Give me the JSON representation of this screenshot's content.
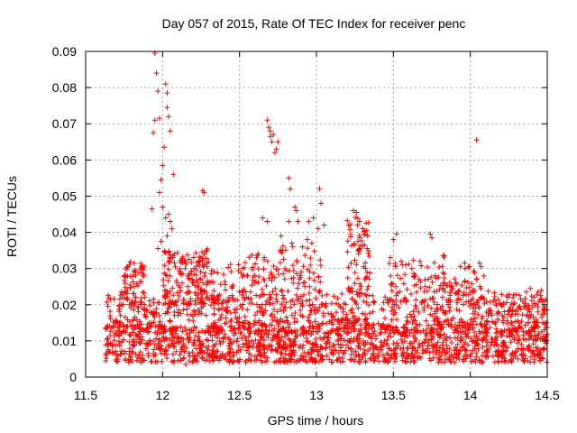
{
  "chart_data": {
    "type": "scatter",
    "title": "Day 057 of 2015, Rate Of TEC Index for receiver penc",
    "xlabel": "GPS time / hours",
    "ylabel": "ROTI / TECUs",
    "xlim": [
      11.5,
      14.5
    ],
    "ylim": [
      0,
      0.09
    ],
    "xticks": [
      11.5,
      12,
      12.5,
      13,
      13.5,
      14,
      14.5
    ],
    "xtick_labels": [
      "11.5",
      "12",
      "12.5",
      "13",
      "13.5",
      "14",
      "14.5"
    ],
    "yticks": [
      0,
      0.01,
      0.02,
      0.03,
      0.04,
      0.05,
      0.06,
      0.07,
      0.08,
      0.09
    ],
    "ytick_labels": [
      "0",
      "0.01",
      "0.02",
      "0.03",
      "0.04",
      "0.05",
      "0.06",
      "0.07",
      "0.08",
      "0.09"
    ],
    "grid": true,
    "marker": "+",
    "color": "#ff0000",
    "x_data_range": [
      11.63,
      14.5
    ],
    "bands": [
      {
        "x0": 11.63,
        "x1": 14.5,
        "y0": 0.004,
        "y1": 0.016,
        "n": 1400
      },
      {
        "x0": 11.63,
        "x1": 14.5,
        "y0": 0.012,
        "y1": 0.024,
        "n": 700
      },
      {
        "x0": 11.75,
        "x1": 11.9,
        "y0": 0.02,
        "y1": 0.032,
        "n": 60
      },
      {
        "x0": 12.0,
        "x1": 12.3,
        "y0": 0.02,
        "y1": 0.038,
        "n": 160
      },
      {
        "x0": 12.3,
        "x1": 12.55,
        "y0": 0.018,
        "y1": 0.032,
        "n": 60
      },
      {
        "x0": 12.55,
        "x1": 12.75,
        "y0": 0.02,
        "y1": 0.035,
        "n": 50
      },
      {
        "x0": 12.75,
        "x1": 13.05,
        "y0": 0.02,
        "y1": 0.04,
        "n": 70
      },
      {
        "x0": 13.2,
        "x1": 13.35,
        "y0": 0.02,
        "y1": 0.045,
        "n": 70
      },
      {
        "x0": 13.45,
        "x1": 13.85,
        "y0": 0.02,
        "y1": 0.035,
        "n": 80
      },
      {
        "x0": 13.85,
        "x1": 14.1,
        "y0": 0.02,
        "y1": 0.032,
        "n": 50
      },
      {
        "x0": 14.1,
        "x1": 14.5,
        "y0": 0.015,
        "y1": 0.026,
        "n": 60
      }
    ],
    "points": [
      [
        11.95,
        0.0895
      ],
      [
        11.96,
        0.084
      ],
      [
        11.97,
        0.079
      ],
      [
        12.02,
        0.081
      ],
      [
        12.03,
        0.0785
      ],
      [
        12.03,
        0.0745
      ],
      [
        12.04,
        0.072
      ],
      [
        12.05,
        0.068
      ],
      [
        11.94,
        0.0675
      ],
      [
        11.95,
        0.071
      ],
      [
        11.98,
        0.0715
      ],
      [
        12.01,
        0.0635
      ],
      [
        12.0,
        0.0585
      ],
      [
        12.07,
        0.056
      ],
      [
        11.99,
        0.0545
      ],
      [
        11.98,
        0.051
      ],
      [
        12.0,
        0.047
      ],
      [
        11.93,
        0.0465
      ],
      [
        12.02,
        0.044
      ],
      [
        12.04,
        0.045
      ],
      [
        12.05,
        0.043
      ],
      [
        12.06,
        0.041
      ],
      [
        12.03,
        0.039
      ],
      [
        11.97,
        0.0355
      ],
      [
        11.99,
        0.0375
      ],
      [
        12.26,
        0.0515
      ],
      [
        12.27,
        0.051
      ],
      [
        12.68,
        0.071
      ],
      [
        12.69,
        0.069
      ],
      [
        12.7,
        0.068
      ],
      [
        12.72,
        0.067
      ],
      [
        12.71,
        0.065
      ],
      [
        12.74,
        0.063
      ],
      [
        12.75,
        0.065
      ],
      [
        12.73,
        0.062
      ],
      [
        12.7,
        0.0665
      ],
      [
        12.82,
        0.055
      ],
      [
        12.83,
        0.052
      ],
      [
        12.86,
        0.047
      ],
      [
        12.87,
        0.046
      ],
      [
        12.88,
        0.043
      ],
      [
        12.82,
        0.043
      ],
      [
        12.65,
        0.044
      ],
      [
        12.68,
        0.043
      ],
      [
        12.77,
        0.039
      ],
      [
        12.84,
        0.037
      ],
      [
        12.78,
        0.035
      ],
      [
        12.91,
        0.036
      ],
      [
        12.95,
        0.043
      ],
      [
        12.98,
        0.044
      ],
      [
        13.02,
        0.052
      ],
      [
        13.03,
        0.048
      ],
      [
        13.05,
        0.042
      ],
      [
        13.01,
        0.041
      ],
      [
        12.94,
        0.038
      ],
      [
        12.97,
        0.037
      ],
      [
        13.24,
        0.046
      ],
      [
        13.26,
        0.0455
      ],
      [
        13.28,
        0.043
      ],
      [
        13.3,
        0.041
      ],
      [
        13.31,
        0.0395
      ],
      [
        13.27,
        0.0375
      ],
      [
        13.33,
        0.0355
      ],
      [
        13.52,
        0.0395
      ],
      [
        13.5,
        0.038
      ],
      [
        13.74,
        0.0395
      ],
      [
        13.75,
        0.0385
      ],
      [
        14.04,
        0.0655
      ],
      [
        14.06,
        0.0315
      ],
      [
        14.07,
        0.0305
      ],
      [
        13.3,
        0.0055
      ],
      [
        13.32,
        0.0045
      ],
      [
        13.28,
        0.004
      ],
      [
        12.15,
        0.0035
      ],
      [
        12.2,
        0.0045
      ],
      [
        14.48,
        0.0195
      ],
      [
        14.5,
        0.0185
      ],
      [
        13.58,
        0.031
      ],
      [
        13.62,
        0.03
      ],
      [
        13.48,
        0.033
      ]
    ]
  }
}
